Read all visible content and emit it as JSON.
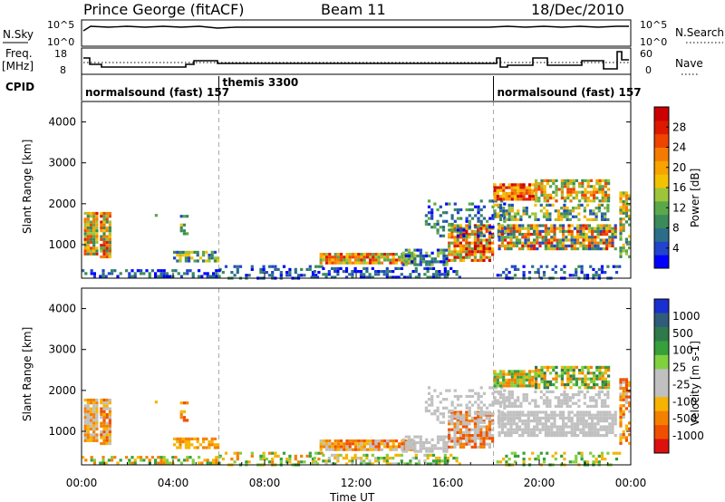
{
  "header": {
    "station": "Prince George (fitACF)",
    "beam": "Beam 11",
    "date": "18/Dec/2010"
  },
  "nsky": {
    "label": "N.Sky",
    "right_label": "N.Search",
    "ticks_left": [
      "10^5",
      "10^0"
    ],
    "ticks_right": [
      "10^5",
      "10^0"
    ]
  },
  "freq": {
    "label_line1": "Freq.",
    "label_line2": "[MHz]",
    "ticks_left": [
      "18",
      "8"
    ],
    "right_label": "Nave",
    "ticks_right": [
      "60",
      "0"
    ]
  },
  "cpid": {
    "label": "CPID",
    "segments": [
      {
        "label": "normalsound (fast) 157",
        "start": 0
      },
      {
        "label": "themis 3300",
        "start": 6
      },
      {
        "label": "normalsound (fast) 157",
        "start": 18
      }
    ]
  },
  "colors": {
    "power_scale": [
      "#0000ff",
      "#2244cc",
      "#2c6e8a",
      "#3a8a5a",
      "#5aa84a",
      "#9cc53a",
      "#f2c200",
      "#f7a300",
      "#f57b00",
      "#ee4400",
      "#dd1a00",
      "#cc0000"
    ],
    "velocity_scale": [
      "#1a2fd0",
      "#2f5c7a",
      "#2f7a4a",
      "#36a03a",
      "#80d040",
      "#c0c0c0",
      "#c0c0c0",
      "#f6b400",
      "#f48000",
      "#ef5000",
      "#dd1010"
    ],
    "grey": "#c8c8c0"
  },
  "chart_data": [
    {
      "type": "heatmap",
      "panel": "power",
      "ylabel": "Slant Range [km]",
      "xlabel": "",
      "colorbar_label": "Power [dB]",
      "colorbar_ticks": [
        "4",
        "8",
        "12",
        "16",
        "20",
        "24",
        "28"
      ],
      "colorbar_range": [
        0,
        30
      ],
      "y_ticks": [
        "1000",
        "2000",
        "3000",
        "4000"
      ],
      "ylim": [
        180,
        4500
      ],
      "xlim": [
        0,
        24
      ]
    },
    {
      "type": "heatmap",
      "panel": "velocity",
      "ylabel": "Slant Range [km]",
      "xlabel": "Time UT",
      "colorbar_label": "Velocity [m s-1]",
      "colorbar_ticks": [
        "1000",
        "500",
        "100",
        "25",
        "-25",
        "-100",
        "-500",
        "-1000"
      ],
      "y_ticks": [
        "1000",
        "2000",
        "3000",
        "4000"
      ],
      "x_ticks": [
        "00:00",
        "04:00",
        "08:00",
        "12:00",
        "16:00",
        "20:00",
        "00:00"
      ],
      "ylim": [
        180,
        4500
      ],
      "xlim": [
        0,
        24
      ]
    }
  ]
}
